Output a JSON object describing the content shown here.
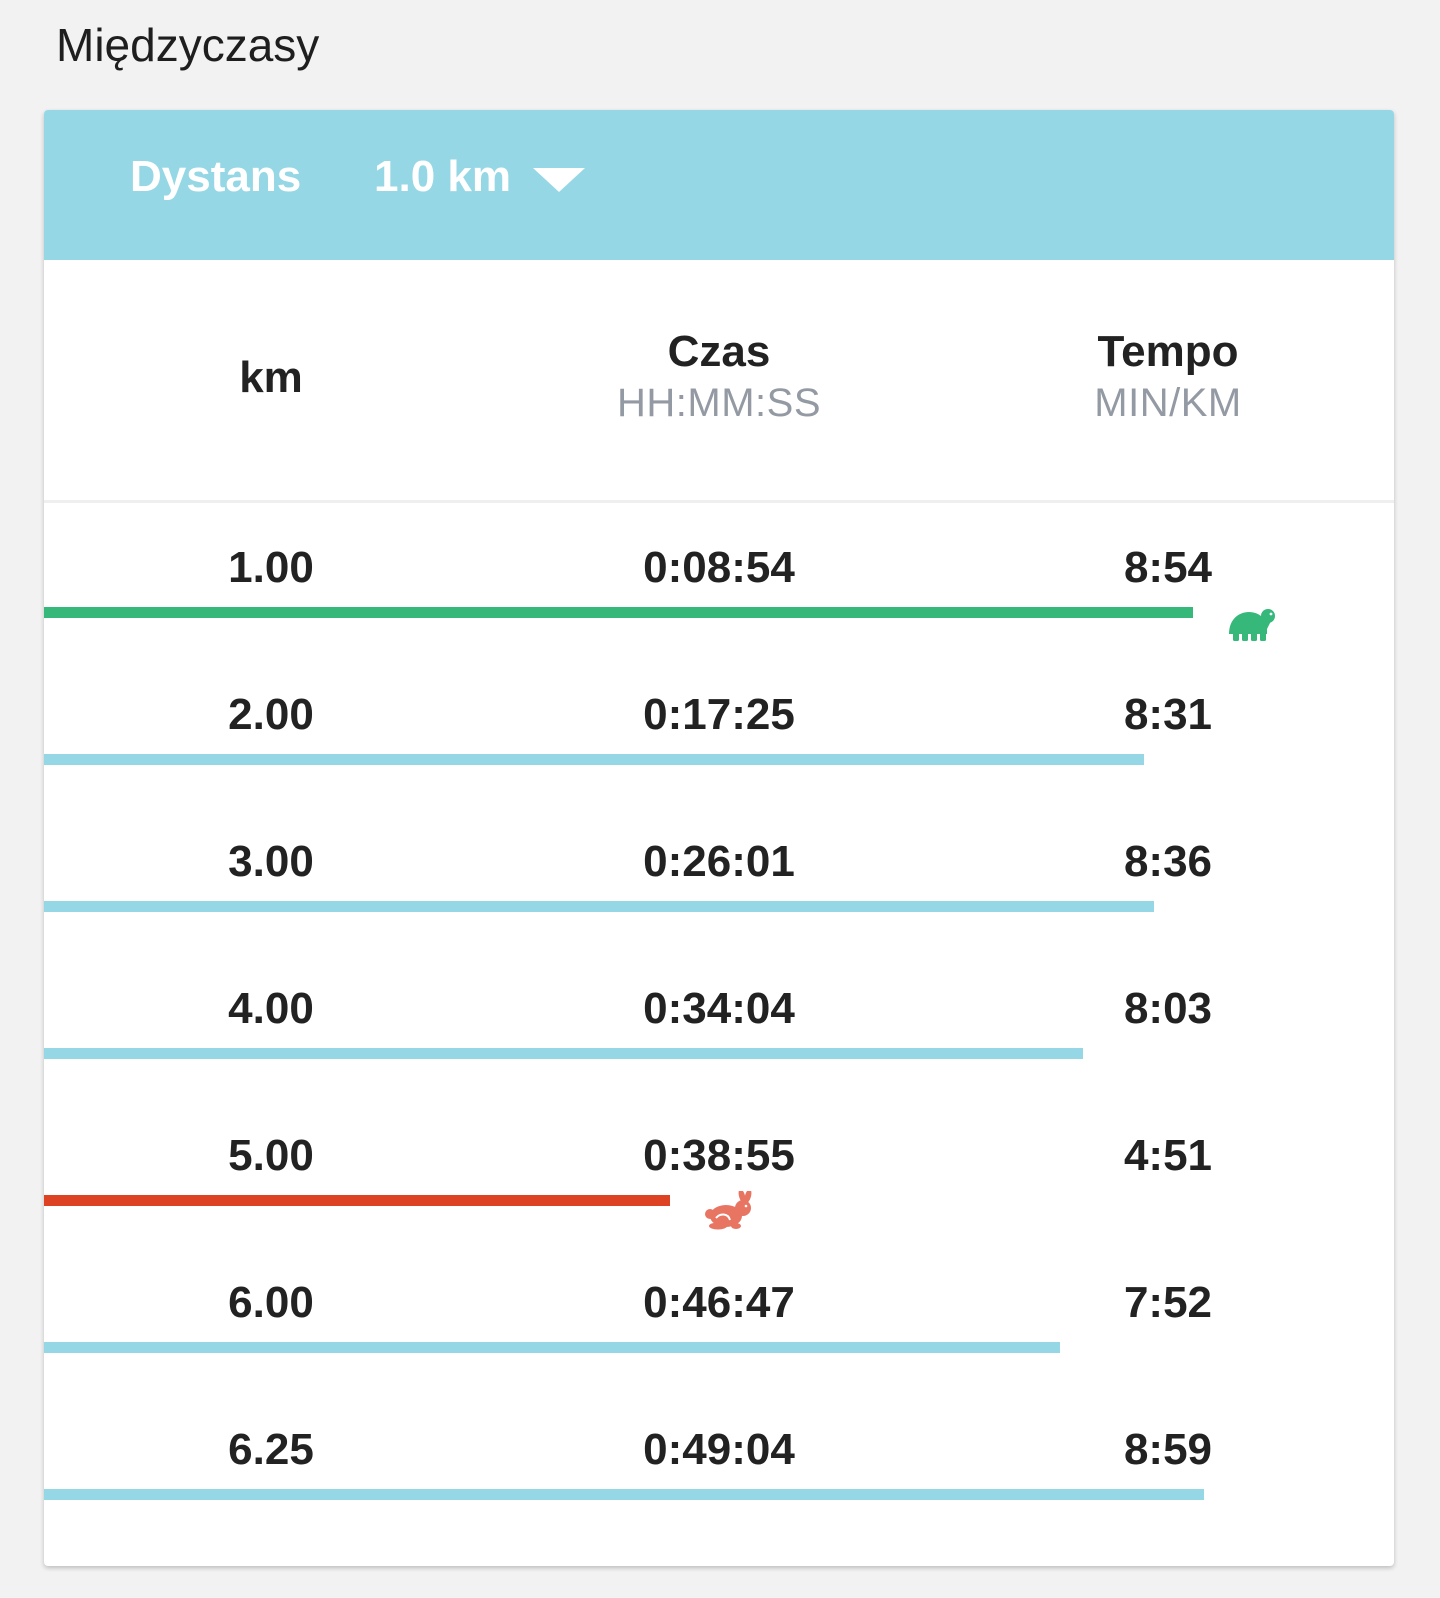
{
  "section": {
    "title": "Międzyczasy"
  },
  "header": {
    "distance_label": "Dystans",
    "distance_value": "1.0 km"
  },
  "columns": {
    "km": {
      "title": "km"
    },
    "time": {
      "title": "Czas",
      "unit": "HH:MM:SS"
    },
    "pace": {
      "title": "Tempo",
      "unit": "MIN/KM"
    }
  },
  "colors": {
    "header_bg": "#96d7e6",
    "bar_default": "#96d7e6",
    "bar_slowest": "#35b87a",
    "bar_fastest": "#dd4222",
    "turtle_icon": "#35b87a",
    "rabbit_icon": "#e87562"
  },
  "splits": [
    {
      "km": "1.00",
      "time": "0:08:54",
      "pace": "8:54",
      "pace_seconds": 534,
      "marker": "turtle-icon"
    },
    {
      "km": "2.00",
      "time": "0:17:25",
      "pace": "8:31",
      "pace_seconds": 511,
      "marker": null
    },
    {
      "km": "3.00",
      "time": "0:26:01",
      "pace": "8:36",
      "pace_seconds": 516,
      "marker": null
    },
    {
      "km": "4.00",
      "time": "0:34:04",
      "pace": "8:03",
      "pace_seconds": 483,
      "marker": null
    },
    {
      "km": "5.00",
      "time": "0:38:55",
      "pace": "4:51",
      "pace_seconds": 291,
      "marker": "rabbit-icon"
    },
    {
      "km": "6.00",
      "time": "0:46:47",
      "pace": "7:52",
      "pace_seconds": 472,
      "marker": null
    },
    {
      "km": "6.25",
      "time": "0:49:04",
      "pace": "8:59",
      "pace_seconds": 539,
      "marker": null
    }
  ]
}
